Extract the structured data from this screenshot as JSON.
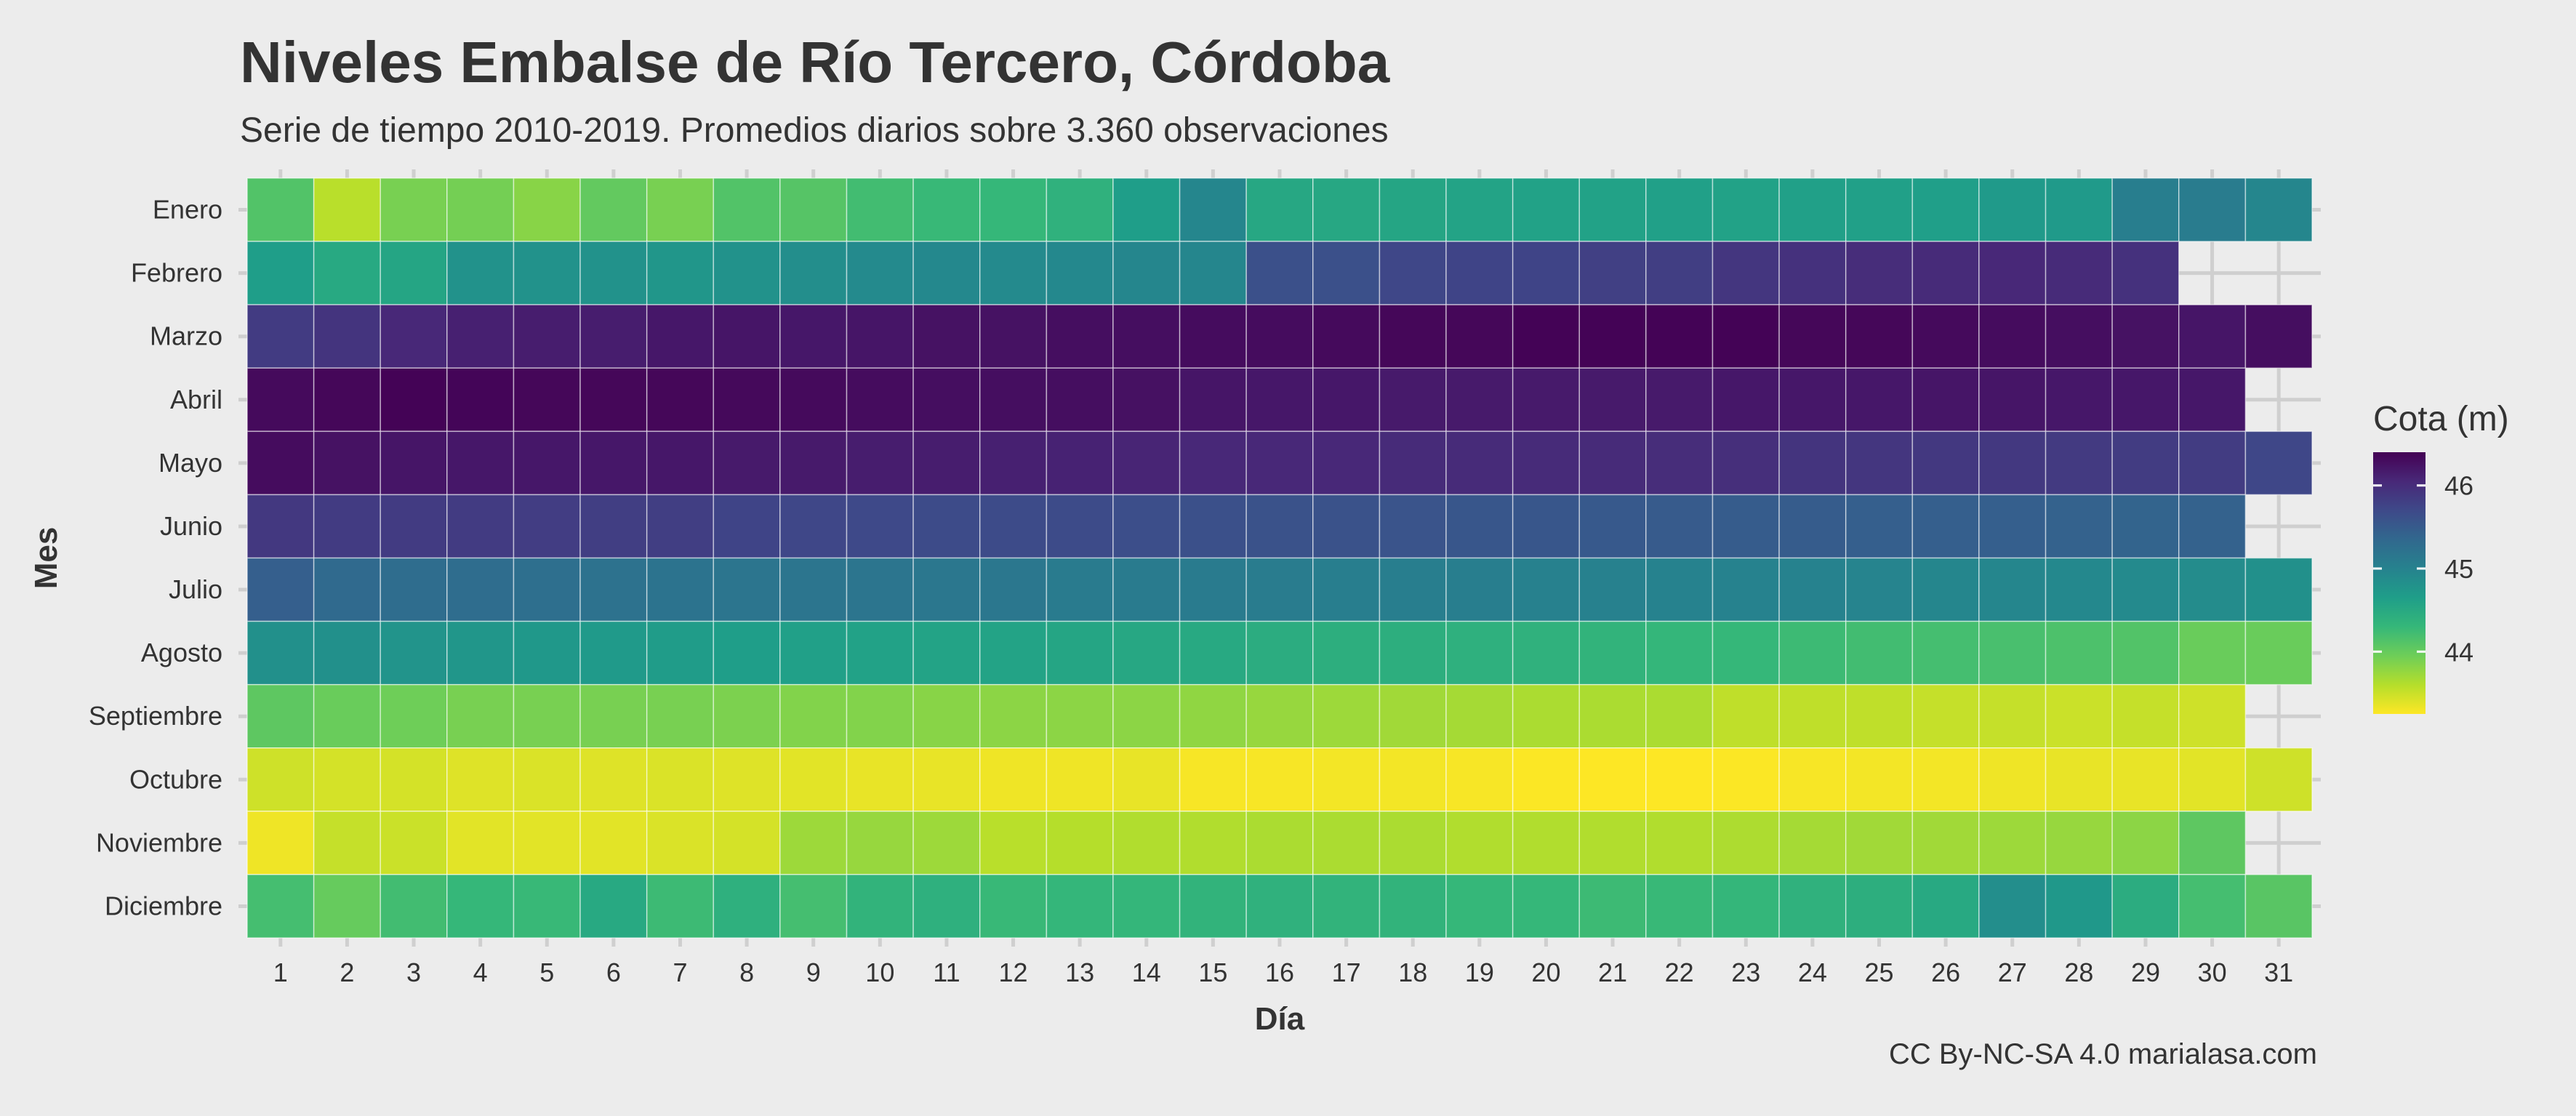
{
  "chart_data": {
    "type": "heatmap",
    "title": "Niveles Embalse de Río Tercero, Córdoba",
    "subtitle": "Serie de tiempo 2010-2019. Promedios diarios sobre 3.360 observaciones",
    "caption": "CC By-NC-SA 4.0 marialasa.com",
    "xlabel": "Día",
    "ylabel": "Mes",
    "x_categories": [
      "1",
      "2",
      "3",
      "4",
      "5",
      "6",
      "7",
      "8",
      "9",
      "10",
      "11",
      "12",
      "13",
      "14",
      "15",
      "16",
      "17",
      "18",
      "19",
      "20",
      "21",
      "22",
      "23",
      "24",
      "25",
      "26",
      "27",
      "28",
      "29",
      "30",
      "31"
    ],
    "y_categories": [
      "Enero",
      "Febrero",
      "Marzo",
      "Abril",
      "Mayo",
      "Junio",
      "Julio",
      "Agosto",
      "Septiembre",
      "Octubre",
      "Noviembre",
      "Diciembre"
    ],
    "legend": {
      "title": "Cota (m)",
      "placement": "right",
      "ticks": [
        44,
        45,
        46
      ],
      "range": [
        43.25,
        46.4
      ],
      "palette": "viridis-reversed",
      "color_low": "#fde725",
      "color_high": "#440154"
    },
    "values": [
      [
        44.12,
        43.58,
        43.9,
        43.92,
        43.82,
        44.02,
        43.9,
        44.12,
        44.1,
        44.22,
        44.28,
        44.3,
        44.38,
        44.65,
        44.95,
        44.52,
        44.52,
        44.55,
        44.58,
        44.6,
        44.6,
        44.62,
        44.6,
        44.62,
        44.62,
        44.64,
        44.7,
        44.7,
        45.05,
        45.08,
        44.95
      ],
      [
        44.65,
        44.5,
        44.55,
        44.8,
        44.8,
        44.8,
        44.75,
        44.8,
        44.85,
        44.9,
        44.92,
        44.9,
        44.92,
        44.95,
        44.95,
        45.62,
        45.62,
        45.72,
        45.75,
        45.75,
        45.8,
        45.82,
        45.9,
        45.95,
        46.0,
        46.02,
        46.05,
        46.02,
        45.95,
        null,
        null
      ],
      [
        45.85,
        45.92,
        46.05,
        46.12,
        46.15,
        46.15,
        46.2,
        46.22,
        46.2,
        46.22,
        46.25,
        46.25,
        46.28,
        46.28,
        46.3,
        46.3,
        46.32,
        46.35,
        46.35,
        46.38,
        46.38,
        46.38,
        46.38,
        46.35,
        46.35,
        46.32,
        46.3,
        46.28,
        46.25,
        46.22,
        46.28
      ],
      [
        46.32,
        46.35,
        46.38,
        46.36,
        46.35,
        46.35,
        46.35,
        46.33,
        46.32,
        46.3,
        46.28,
        46.28,
        46.28,
        46.26,
        46.22,
        46.2,
        46.2,
        46.18,
        46.18,
        46.18,
        46.18,
        46.18,
        46.2,
        46.2,
        46.2,
        46.22,
        46.22,
        46.2,
        46.2,
        46.2,
        null
      ],
      [
        46.3,
        46.25,
        46.22,
        46.2,
        46.2,
        46.2,
        46.2,
        46.18,
        46.18,
        46.15,
        46.15,
        46.12,
        46.1,
        46.08,
        46.05,
        46.05,
        46.05,
        46.02,
        46.02,
        46.02,
        46.02,
        46.0,
        45.98,
        45.92,
        45.9,
        45.88,
        45.88,
        45.86,
        45.84,
        45.84,
        45.72
      ],
      [
        45.88,
        45.85,
        45.85,
        45.85,
        45.83,
        45.82,
        45.82,
        45.75,
        45.72,
        45.7,
        45.68,
        45.68,
        45.68,
        45.64,
        45.62,
        45.6,
        45.6,
        45.58,
        45.55,
        45.55,
        45.52,
        45.5,
        45.48,
        45.48,
        45.45,
        45.45,
        45.45,
        45.42,
        45.4,
        45.42,
        null
      ],
      [
        45.45,
        45.32,
        45.28,
        45.28,
        45.25,
        45.22,
        45.2,
        45.18,
        45.18,
        45.18,
        45.15,
        45.15,
        45.1,
        45.1,
        45.1,
        45.08,
        45.05,
        45.05,
        45.05,
        45.02,
        45.02,
        45.0,
        45.0,
        45.0,
        44.98,
        44.95,
        44.95,
        44.92,
        44.9,
        44.88,
        44.82
      ],
      [
        44.82,
        44.82,
        44.78,
        44.75,
        44.72,
        44.7,
        44.68,
        44.65,
        44.62,
        44.6,
        44.58,
        44.58,
        44.55,
        44.52,
        44.5,
        44.45,
        44.42,
        44.42,
        44.4,
        44.38,
        44.35,
        44.32,
        44.3,
        44.25,
        44.22,
        44.2,
        44.18,
        44.15,
        44.12,
        43.98,
        43.98
      ],
      [
        44.05,
        43.98,
        43.95,
        43.9,
        43.9,
        43.9,
        43.9,
        43.88,
        43.85,
        43.85,
        43.82,
        43.8,
        43.8,
        43.8,
        43.78,
        43.75,
        43.72,
        43.7,
        43.68,
        43.65,
        43.65,
        43.65,
        43.55,
        43.55,
        43.55,
        43.52,
        43.52,
        43.5,
        43.52,
        43.48,
        null
      ],
      [
        43.48,
        43.45,
        43.45,
        43.4,
        43.42,
        43.4,
        43.42,
        43.4,
        43.38,
        43.35,
        43.35,
        43.32,
        43.32,
        43.35,
        43.28,
        43.28,
        43.3,
        43.3,
        43.28,
        43.26,
        43.25,
        43.25,
        43.26,
        43.28,
        43.3,
        43.3,
        43.32,
        43.35,
        43.35,
        43.38,
        43.48
      ],
      [
        43.32,
        43.52,
        43.5,
        43.38,
        43.38,
        43.38,
        43.42,
        43.45,
        43.72,
        43.75,
        43.72,
        43.58,
        43.6,
        43.62,
        43.62,
        43.65,
        43.65,
        43.65,
        43.62,
        43.62,
        43.62,
        43.62,
        43.64,
        43.68,
        43.7,
        43.7,
        43.72,
        43.75,
        43.8,
        44.05,
        null
      ],
      [
        44.2,
        44.0,
        44.22,
        44.3,
        44.28,
        44.5,
        44.25,
        44.4,
        44.2,
        44.35,
        44.4,
        44.28,
        44.32,
        44.32,
        44.35,
        44.38,
        44.35,
        44.35,
        44.3,
        44.3,
        44.25,
        44.28,
        44.32,
        44.38,
        44.42,
        44.5,
        44.85,
        44.72,
        44.45,
        44.2,
        44.08
      ]
    ]
  }
}
